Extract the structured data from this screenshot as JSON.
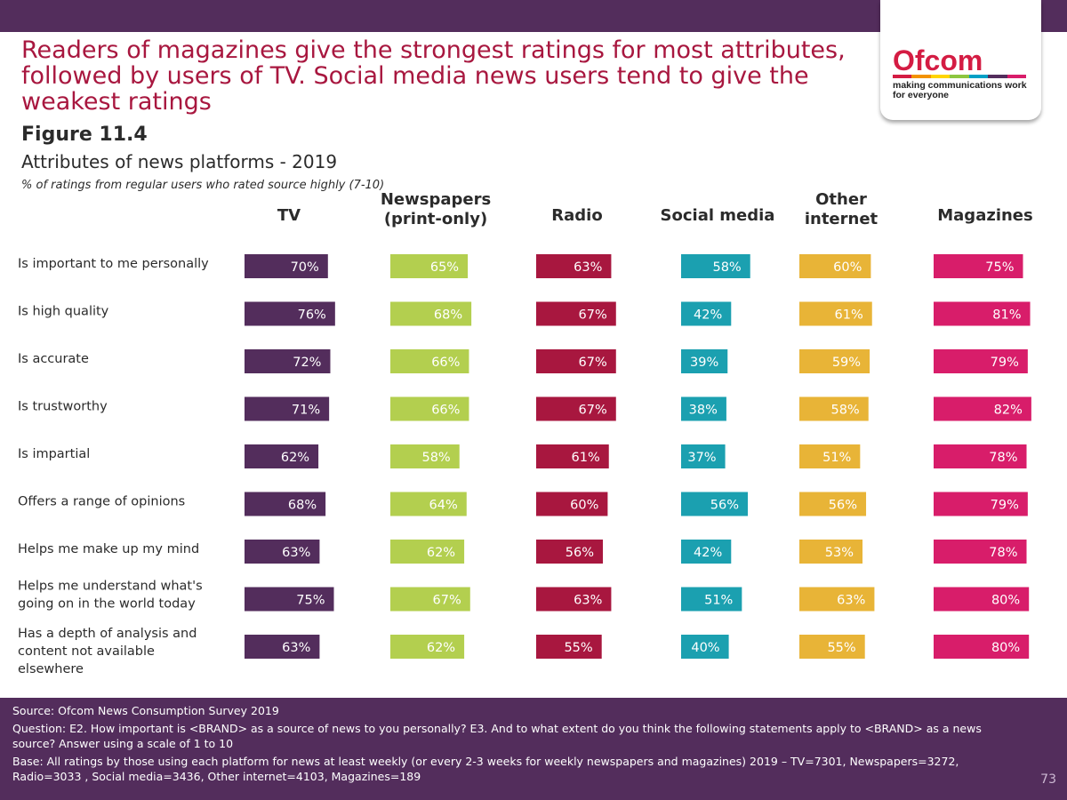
{
  "header": {
    "headline": "Readers of magazines give the strongest ratings for most attributes, followed by users of TV.  Social media news users tend to give the weakest ratings",
    "figure_number": "Figure 11.4",
    "logo": {
      "name": "Ofcom",
      "tagline": "making communications work for everyone"
    }
  },
  "chart_data": {
    "type": "bar",
    "title": "Attributes of news platforms - 2019",
    "subtitle": "% of ratings from regular users who rated source highly (7-10)",
    "value_suffix": "%",
    "categories": [
      "Is important to me personally",
      "Is high quality",
      "Is accurate",
      "Is trustworthy",
      "Is impartial",
      "Offers a range of opinions",
      "Helps me make up my mind",
      "Helps me understand what's going on in the world today",
      "Has a depth of analysis and content not available elsewhere"
    ],
    "series": [
      {
        "name": "TV",
        "color": "#532d5c",
        "values": [
          70,
          76,
          72,
          71,
          62,
          68,
          63,
          75,
          63
        ]
      },
      {
        "name": "Newspapers (print-only)",
        "color": "#b3cf4f",
        "values": [
          65,
          68,
          66,
          66,
          58,
          64,
          62,
          67,
          62
        ]
      },
      {
        "name": "Radio",
        "color": "#a8173f",
        "values": [
          63,
          67,
          67,
          67,
          61,
          60,
          56,
          63,
          55
        ]
      },
      {
        "name": "Social media",
        "color": "#1ba0b0",
        "values": [
          58,
          42,
          39,
          38,
          37,
          56,
          42,
          51,
          40
        ]
      },
      {
        "name": "Other internet",
        "color": "#e8b437",
        "values": [
          60,
          61,
          59,
          58,
          51,
          56,
          53,
          63,
          55
        ]
      },
      {
        "name": "Magazines",
        "color": "#d81d6a",
        "values": [
          75,
          81,
          79,
          82,
          78,
          79,
          78,
          80,
          80
        ]
      }
    ]
  },
  "footer": {
    "source": "Source: Ofcom News Consumption Survey 2019",
    "question": "Question: E2. How important is <BRAND> as a source of news to you personally?  E3. And to what extent do you think the following statements apply to <BRAND> as a news source? Answer using a scale of 1 to 10",
    "base": "Base: All ratings by those using each platform for news at least weekly (or every 2-3 weeks for weekly newspapers and magazines) 2019 – TV=7301, Newspapers=3272, Radio=3033 , Social media=3436, Other internet=4103, Magazines=189",
    "page_number": "73"
  }
}
